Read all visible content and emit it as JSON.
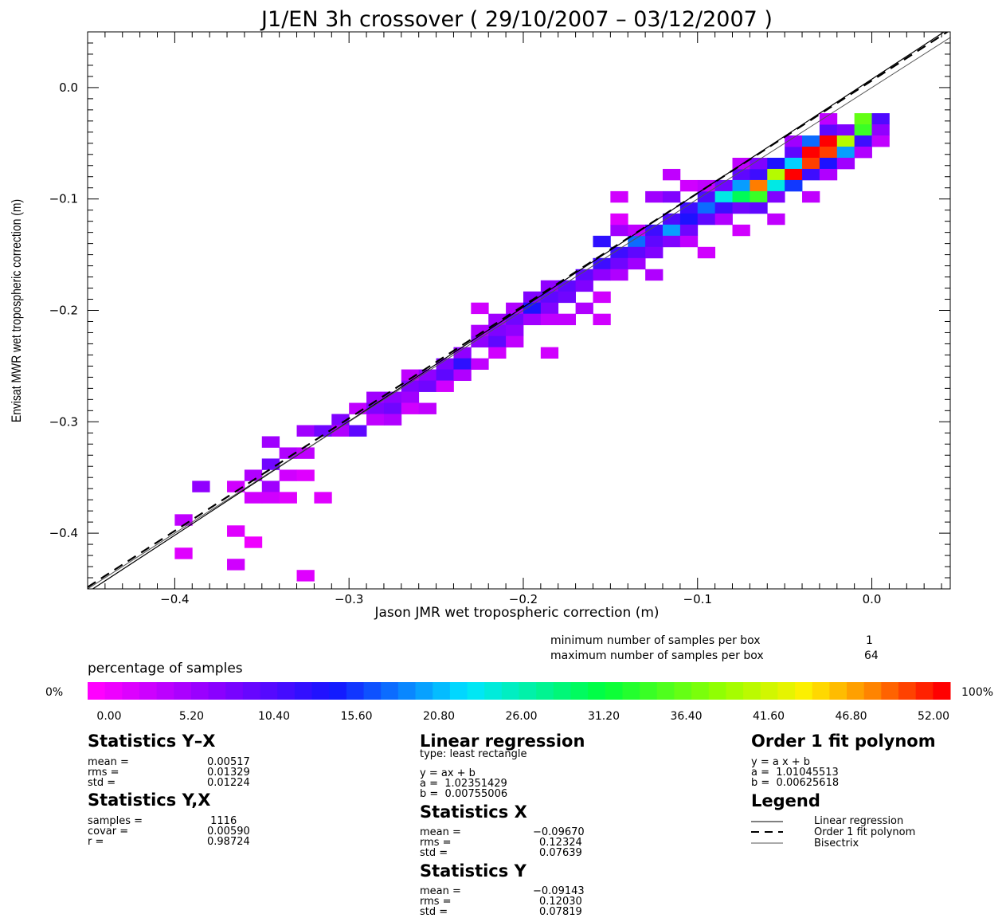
{
  "chart_data": {
    "type": "heatmap",
    "title": "J1/EN 3h crossover ( 29/10/2007 – 03/12/2007 )",
    "xlabel": "Jason JMR wet tropospheric correction (m)",
    "ylabel": "Envisat MWR wet tropospheric correction (m)",
    "xlim": [
      -0.45,
      0.045
    ],
    "ylim": [
      -0.45,
      0.05
    ],
    "x_ticks": [
      "−0.4",
      "−0.3",
      "−0.2",
      "−0.1",
      "0.0"
    ],
    "x_tick_values": [
      -0.4,
      -0.3,
      -0.2,
      -0.1,
      0.0
    ],
    "y_ticks": [
      "−0.4",
      "−0.3",
      "−0.2",
      "−0.1",
      "0.0"
    ],
    "y_tick_values": [
      -0.4,
      -0.3,
      -0.2,
      -0.1,
      0.0
    ],
    "bin_size": 0.01,
    "cells_note": "each cell: [x bin center, y bin center, percentage of samples]",
    "cells": [
      [
        -0.395,
        -0.388,
        4
      ],
      [
        -0.395,
        -0.418,
        2
      ],
      [
        -0.385,
        -0.358,
        7
      ],
      [
        -0.365,
        -0.358,
        3
      ],
      [
        -0.365,
        -0.398,
        2
      ],
      [
        -0.365,
        -0.428,
        3
      ],
      [
        -0.355,
        -0.348,
        5
      ],
      [
        -0.355,
        -0.368,
        3
      ],
      [
        -0.355,
        -0.408,
        1
      ],
      [
        -0.345,
        -0.318,
        6
      ],
      [
        -0.345,
        -0.338,
        9
      ],
      [
        -0.345,
        -0.358,
        6
      ],
      [
        -0.345,
        -0.368,
        3
      ],
      [
        -0.335,
        -0.328,
        5
      ],
      [
        -0.335,
        -0.348,
        3
      ],
      [
        -0.335,
        -0.368,
        2
      ],
      [
        -0.325,
        -0.308,
        6
      ],
      [
        -0.325,
        -0.328,
        4
      ],
      [
        -0.325,
        -0.348,
        2
      ],
      [
        -0.325,
        -0.438,
        2
      ],
      [
        -0.315,
        -0.308,
        9
      ],
      [
        -0.315,
        -0.368,
        2
      ],
      [
        -0.305,
        -0.298,
        8
      ],
      [
        -0.305,
        -0.308,
        5
      ],
      [
        -0.295,
        -0.288,
        4
      ],
      [
        -0.295,
        -0.308,
        10
      ],
      [
        -0.285,
        -0.278,
        6
      ],
      [
        -0.285,
        -0.288,
        8
      ],
      [
        -0.285,
        -0.298,
        4
      ],
      [
        -0.275,
        -0.278,
        7
      ],
      [
        -0.275,
        -0.288,
        9
      ],
      [
        -0.275,
        -0.298,
        5
      ],
      [
        -0.265,
        -0.258,
        4
      ],
      [
        -0.265,
        -0.268,
        8
      ],
      [
        -0.265,
        -0.278,
        6
      ],
      [
        -0.265,
        -0.288,
        3
      ],
      [
        -0.255,
        -0.258,
        7
      ],
      [
        -0.255,
        -0.268,
        9
      ],
      [
        -0.255,
        -0.288,
        4
      ],
      [
        -0.245,
        -0.248,
        8
      ],
      [
        -0.245,
        -0.258,
        10
      ],
      [
        -0.245,
        -0.268,
        3
      ],
      [
        -0.235,
        -0.238,
        7
      ],
      [
        -0.235,
        -0.248,
        13
      ],
      [
        -0.235,
        -0.258,
        5
      ],
      [
        -0.225,
        -0.198,
        3
      ],
      [
        -0.225,
        -0.218,
        5
      ],
      [
        -0.225,
        -0.228,
        7
      ],
      [
        -0.225,
        -0.248,
        4
      ],
      [
        -0.215,
        -0.208,
        6
      ],
      [
        -0.215,
        -0.218,
        8
      ],
      [
        -0.215,
        -0.228,
        10
      ],
      [
        -0.215,
        -0.238,
        3
      ],
      [
        -0.205,
        -0.198,
        5
      ],
      [
        -0.205,
        -0.208,
        9
      ],
      [
        -0.205,
        -0.218,
        7
      ],
      [
        -0.205,
        -0.228,
        4
      ],
      [
        -0.195,
        -0.188,
        8
      ],
      [
        -0.195,
        -0.198,
        14
      ],
      [
        -0.195,
        -0.208,
        6
      ],
      [
        -0.185,
        -0.178,
        7
      ],
      [
        -0.185,
        -0.188,
        10
      ],
      [
        -0.185,
        -0.198,
        8
      ],
      [
        -0.185,
        -0.208,
        4
      ],
      [
        -0.185,
        -0.238,
        3
      ],
      [
        -0.175,
        -0.178,
        10
      ],
      [
        -0.175,
        -0.188,
        9
      ],
      [
        -0.175,
        -0.208,
        4
      ],
      [
        -0.165,
        -0.168,
        10
      ],
      [
        -0.165,
        -0.178,
        8
      ],
      [
        -0.165,
        -0.198,
        5
      ],
      [
        -0.155,
        -0.138,
        13
      ],
      [
        -0.155,
        -0.158,
        12
      ],
      [
        -0.155,
        -0.168,
        7
      ],
      [
        -0.155,
        -0.188,
        3
      ],
      [
        -0.155,
        -0.208,
        3
      ],
      [
        -0.145,
        -0.128,
        6
      ],
      [
        -0.145,
        -0.148,
        12
      ],
      [
        -0.145,
        -0.158,
        9
      ],
      [
        -0.145,
        -0.168,
        5
      ],
      [
        -0.145,
        -0.098,
        3
      ],
      [
        -0.145,
        -0.118,
        2
      ],
      [
        -0.135,
        -0.138,
        18
      ],
      [
        -0.135,
        -0.148,
        10
      ],
      [
        -0.135,
        -0.158,
        6
      ],
      [
        -0.135,
        -0.128,
        4
      ],
      [
        -0.125,
        -0.128,
        12
      ],
      [
        -0.125,
        -0.138,
        10
      ],
      [
        -0.125,
        -0.148,
        8
      ],
      [
        -0.125,
        -0.168,
        5
      ],
      [
        -0.125,
        -0.098,
        6
      ],
      [
        -0.115,
        -0.118,
        11
      ],
      [
        -0.115,
        -0.128,
        20
      ],
      [
        -0.115,
        -0.138,
        8
      ],
      [
        -0.115,
        -0.098,
        8
      ],
      [
        -0.115,
        -0.078,
        4
      ],
      [
        -0.105,
        -0.108,
        12
      ],
      [
        -0.105,
        -0.118,
        14
      ],
      [
        -0.105,
        -0.128,
        9
      ],
      [
        -0.105,
        -0.088,
        3
      ],
      [
        -0.105,
        -0.138,
        4
      ],
      [
        -0.095,
        -0.098,
        11
      ],
      [
        -0.095,
        -0.108,
        18
      ],
      [
        -0.095,
        -0.118,
        10
      ],
      [
        -0.095,
        -0.088,
        4
      ],
      [
        -0.095,
        -0.148,
        3
      ],
      [
        -0.085,
        -0.088,
        9
      ],
      [
        -0.085,
        -0.098,
        24
      ],
      [
        -0.085,
        -0.108,
        12
      ],
      [
        -0.085,
        -0.118,
        5
      ],
      [
        -0.075,
        -0.078,
        10
      ],
      [
        -0.075,
        -0.088,
        20
      ],
      [
        -0.075,
        -0.098,
        30
      ],
      [
        -0.075,
        -0.108,
        9
      ],
      [
        -0.075,
        -0.128,
        3
      ],
      [
        -0.075,
        -0.068,
        4
      ],
      [
        -0.065,
        -0.078,
        12
      ],
      [
        -0.065,
        -0.088,
        48
      ],
      [
        -0.065,
        -0.098,
        34
      ],
      [
        -0.065,
        -0.108,
        10
      ],
      [
        -0.065,
        -0.068,
        8
      ],
      [
        -0.055,
        -0.068,
        14
      ],
      [
        -0.055,
        -0.078,
        40
      ],
      [
        -0.055,
        -0.088,
        24
      ],
      [
        -0.055,
        -0.098,
        8
      ],
      [
        -0.055,
        -0.118,
        4
      ],
      [
        -0.045,
        -0.058,
        10
      ],
      [
        -0.045,
        -0.068,
        22
      ],
      [
        -0.045,
        -0.078,
        52
      ],
      [
        -0.045,
        -0.088,
        16
      ],
      [
        -0.045,
        -0.048,
        6
      ],
      [
        -0.035,
        -0.048,
        18
      ],
      [
        -0.035,
        -0.058,
        52
      ],
      [
        -0.035,
        -0.068,
        50
      ],
      [
        -0.035,
        -0.078,
        12
      ],
      [
        -0.035,
        -0.098,
        4
      ],
      [
        -0.025,
        -0.038,
        10
      ],
      [
        -0.025,
        -0.048,
        52
      ],
      [
        -0.025,
        -0.058,
        50
      ],
      [
        -0.025,
        -0.068,
        14
      ],
      [
        -0.025,
        -0.078,
        5
      ],
      [
        -0.025,
        -0.028,
        4
      ],
      [
        -0.015,
        -0.038,
        8
      ],
      [
        -0.015,
        -0.048,
        40
      ],
      [
        -0.015,
        -0.058,
        20
      ],
      [
        -0.015,
        -0.068,
        6
      ],
      [
        -0.005,
        -0.028,
        36
      ],
      [
        -0.005,
        -0.038,
        34
      ],
      [
        -0.005,
        -0.048,
        12
      ],
      [
        -0.005,
        -0.058,
        5
      ],
      [
        0.005,
        -0.028,
        11
      ],
      [
        0.005,
        -0.038,
        7
      ],
      [
        0.005,
        -0.048,
        4
      ]
    ],
    "lines": [
      {
        "label": "Linear regression",
        "a": 1.02351429,
        "b": 0.00755006,
        "style": "solid",
        "color": "#000000"
      },
      {
        "label": "Order 1 fit polynom",
        "a": 1.01045513,
        "b": 0.00625618,
        "style": "dashed",
        "color": "#000000"
      },
      {
        "label": "Bisectrix",
        "a": 1.0,
        "b": 0.0,
        "style": "solid-thin",
        "color": "#555555"
      }
    ],
    "colorbar": {
      "title": "percentage of samples",
      "min_label": "0%",
      "max_label": "100%",
      "min": 0,
      "max": 52,
      "tick_labels": [
        "0.00",
        "5.20",
        "10.40",
        "15.60",
        "20.80",
        "26.00",
        "31.20",
        "36.40",
        "41.60",
        "46.80",
        "52.00"
      ]
    }
  },
  "samples_info": {
    "min_label": "minimum number of samples per box",
    "min_value": "1",
    "max_label": "maximum number of samples per box",
    "max_value": "64"
  },
  "stats_yx_diff": {
    "title": "Statistics Y–X",
    "rows": [
      {
        "label": "mean =",
        "value": "0.00517"
      },
      {
        "label": "rms =",
        "value": "0.01329"
      },
      {
        "label": "std =",
        "value": "0.01224"
      }
    ]
  },
  "stats_yx_corr": {
    "title": "Statistics Y,X",
    "rows": [
      {
        "label": "samples =",
        "value": " 1116"
      },
      {
        "label": "covar =",
        "value": "0.00590"
      },
      {
        "label": "r =",
        "value": "0.98724"
      }
    ]
  },
  "linear_regression": {
    "title": "Linear regression",
    "type_label": "type: least rectangle",
    "equation": "y = ax + b",
    "a_line": "a =  1.02351429",
    "b_line": "b =  0.00755006"
  },
  "stats_x": {
    "title": "Statistics X",
    "rows": [
      {
        "label": "mean =",
        "value": "−0.09670"
      },
      {
        "label": "rms =",
        "value": "0.12324"
      },
      {
        "label": "std =",
        "value": "0.07639"
      }
    ]
  },
  "stats_y": {
    "title": "Statistics Y",
    "rows": [
      {
        "label": "mean =",
        "value": "−0.09143"
      },
      {
        "label": "rms =",
        "value": "0.12030"
      },
      {
        "label": "std =",
        "value": "0.07819"
      }
    ]
  },
  "order1_fit": {
    "title": "Order 1 fit polynom",
    "equation": "y = a x + b",
    "a_line": "a =  1.01045513",
    "b_line": "b =  0.00625618"
  },
  "legend": {
    "title": "Legend",
    "items": [
      "Linear regression",
      "Order 1 fit polynom",
      "Bisectrix"
    ]
  }
}
